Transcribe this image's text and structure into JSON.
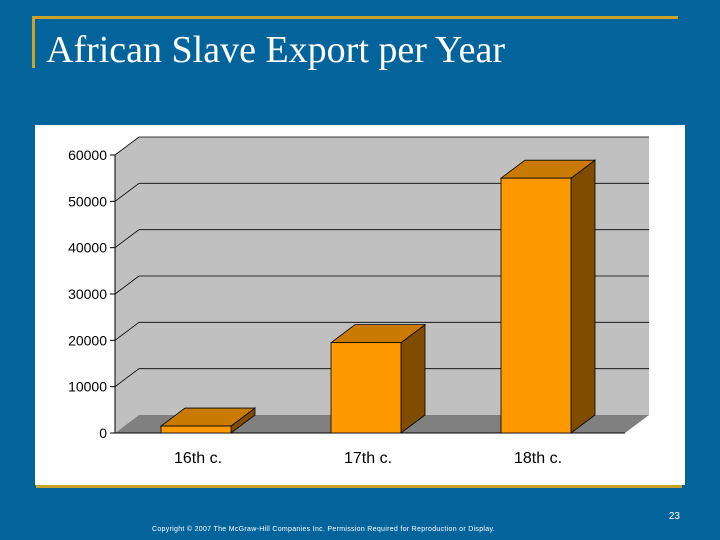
{
  "slide": {
    "title": "African Slave Export per Year",
    "page_number": "23",
    "copyright": "Copyright © 2007 The McGraw-Hill Companies Inc. Permission Required for Reproduction or Display."
  },
  "colors": {
    "background": "#03649B",
    "accent_rule": "#C9A227",
    "bar_front": "#FF9900",
    "bar_top": "#C97A00",
    "bar_side": "#7F4C00",
    "plot_wall": "#C0C0C0",
    "plot_floor": "#808080"
  },
  "chart_data": {
    "type": "bar",
    "title": "",
    "xlabel": "",
    "ylabel": "",
    "categories": [
      "16th c.",
      "17th c.",
      "18th c."
    ],
    "values": [
      1500,
      19500,
      55000
    ],
    "ylim": [
      0,
      60000
    ],
    "yticks": [
      "0",
      "10000",
      "20000",
      "30000",
      "40000",
      "50000",
      "60000"
    ],
    "grid": true,
    "legend": "none",
    "style": "3d"
  }
}
